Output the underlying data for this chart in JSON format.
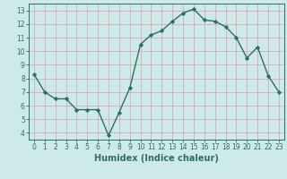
{
  "x": [
    0,
    1,
    2,
    3,
    4,
    5,
    6,
    7,
    8,
    9,
    10,
    11,
    12,
    13,
    14,
    15,
    16,
    17,
    18,
    19,
    20,
    21,
    22,
    23
  ],
  "y": [
    8.3,
    7.0,
    6.5,
    6.5,
    5.7,
    5.7,
    5.7,
    3.8,
    5.5,
    7.3,
    10.5,
    11.2,
    11.5,
    12.2,
    12.8,
    13.1,
    12.3,
    12.2,
    11.8,
    11.0,
    9.5,
    10.3,
    8.2,
    7.0
  ],
  "line_color": "#2e7060",
  "marker": "D",
  "marker_size": 2.2,
  "bg_color": "#cde9e9",
  "grid_color": "#b0d4d4",
  "xlabel": "Humidex (Indice chaleur)",
  "ylim": [
    3.5,
    13.5
  ],
  "xlim": [
    -0.5,
    23.5
  ],
  "yticks": [
    4,
    5,
    6,
    7,
    8,
    9,
    10,
    11,
    12,
    13
  ],
  "xticks": [
    0,
    1,
    2,
    3,
    4,
    5,
    6,
    7,
    8,
    9,
    10,
    11,
    12,
    13,
    14,
    15,
    16,
    17,
    18,
    19,
    20,
    21,
    22,
    23
  ],
  "tick_color": "#2e7060",
  "label_fontsize": 5.5,
  "xlabel_fontsize": 7.0,
  "linewidth": 1.0
}
